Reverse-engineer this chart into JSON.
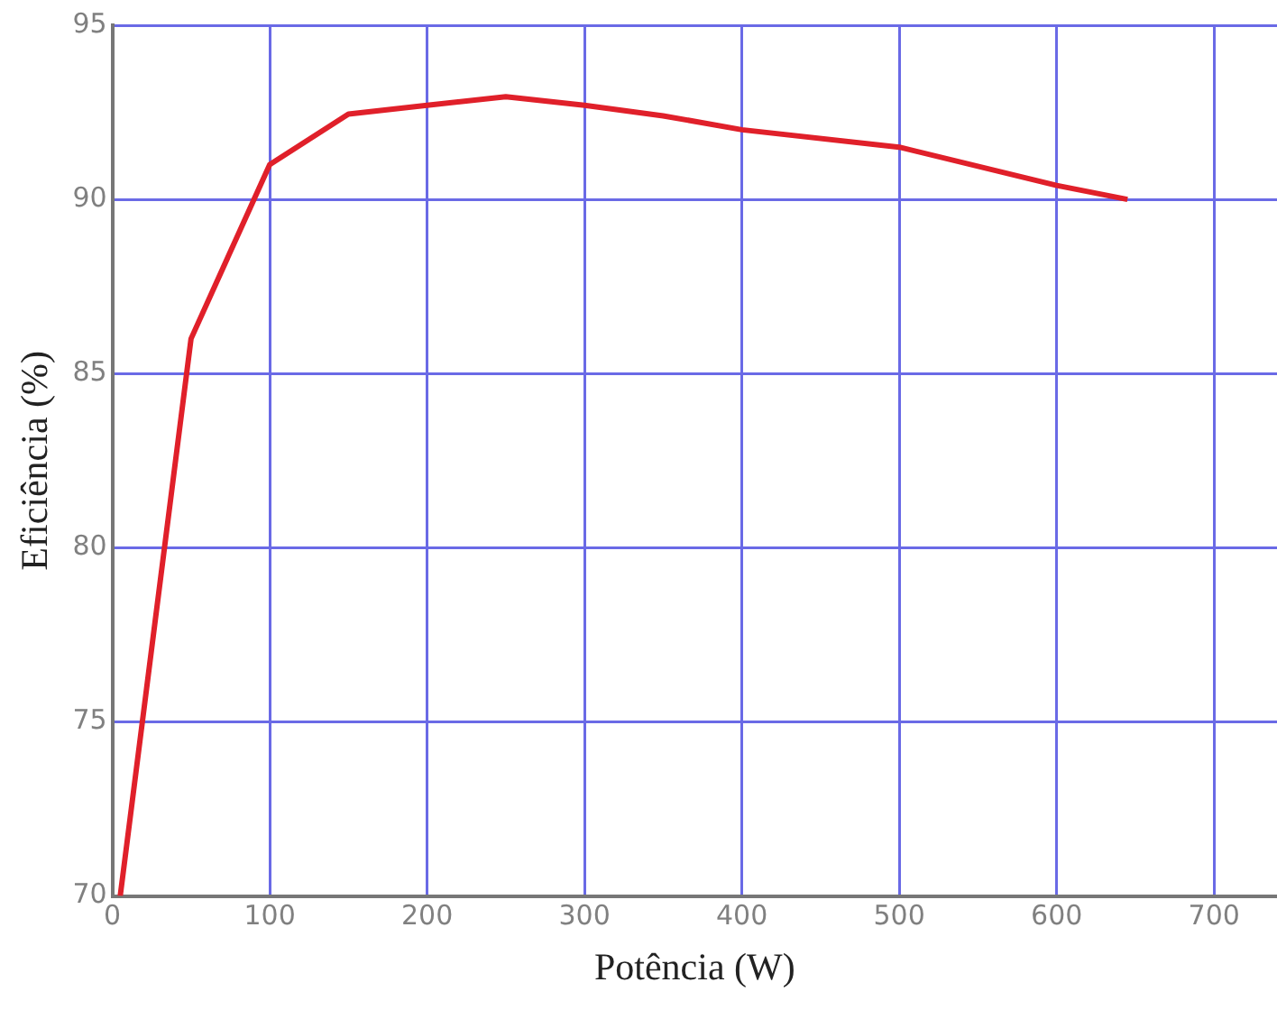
{
  "chart_data": {
    "type": "line",
    "xlabel": "Potência (W)",
    "ylabel": "Eficiência (%)",
    "x": [
      5,
      50,
      100,
      150,
      200,
      250,
      300,
      350,
      400,
      500,
      600,
      645
    ],
    "series": [
      {
        "color": "#e0202a",
        "values": [
          70,
          86,
          91,
          92.45,
          92.7,
          92.95,
          92.7,
          92.4,
          92,
          91.5,
          90.4,
          90
        ]
      }
    ],
    "xlim": [
      0,
      740
    ],
    "xticks": [
      0,
      100,
      200,
      300,
      400,
      500,
      600,
      700
    ],
    "ylim": [
      70,
      95
    ],
    "yticks": [
      70,
      75,
      80,
      85,
      90,
      95
    ],
    "grid": true,
    "legend": false,
    "marker": "none",
    "line_style": "solid"
  }
}
